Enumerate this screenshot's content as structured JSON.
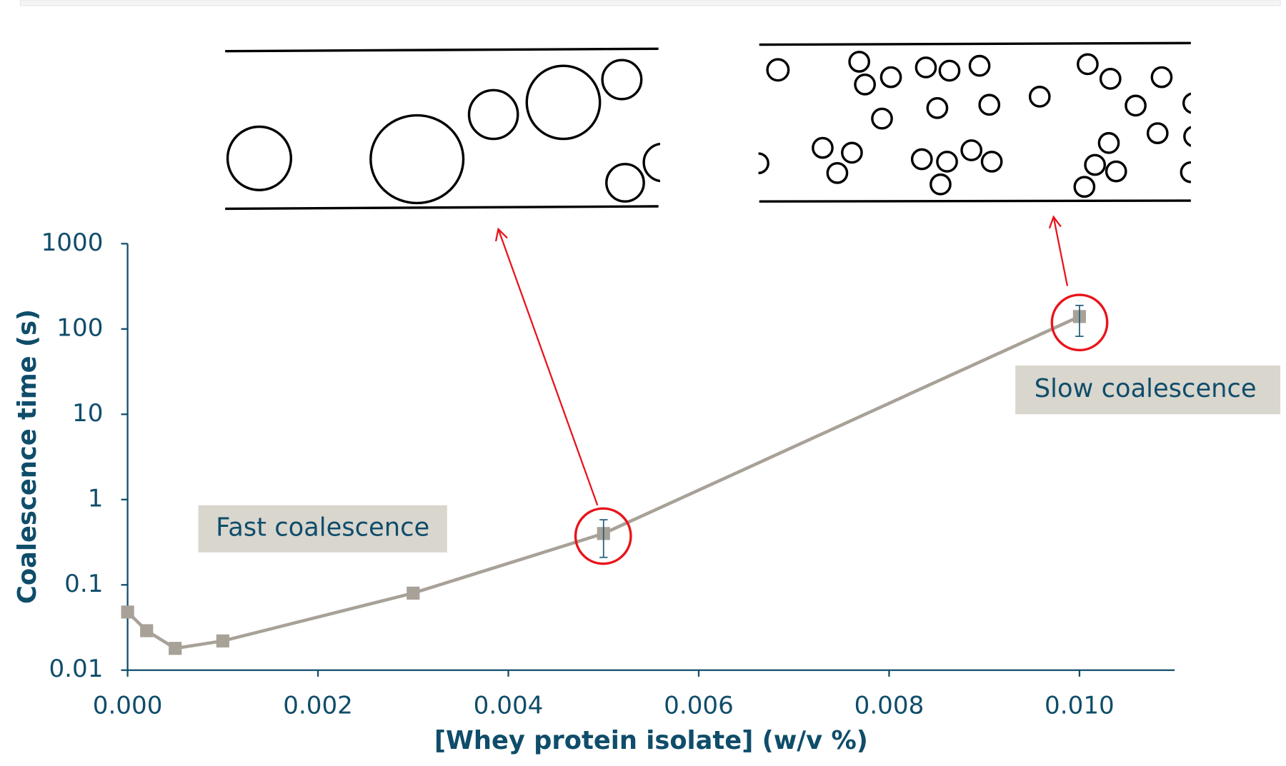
{
  "chart_data": {
    "type": "line",
    "x_label": "[Whey protein isolate] (w/v %)",
    "y_label": "Coalescence time (s)",
    "x": [
      0,
      0.0002,
      0.0005,
      0.001,
      0.003,
      0.005,
      0.01
    ],
    "values": [
      0.048,
      0.029,
      0.018,
      0.022,
      0.08,
      0.4,
      140
    ],
    "error_upper": [
      null,
      null,
      null,
      null,
      null,
      0.58,
      189
    ],
    "error_lower": [
      null,
      null,
      null,
      null,
      null,
      0.21,
      82
    ],
    "color": "#a8a198",
    "error_color": "#1f5c78",
    "log_y": true,
    "xlim": [
      0,
      0.011
    ],
    "ylim": [
      0.01,
      1000
    ],
    "xticks": [
      {
        "value": 0,
        "label": "0.000"
      },
      0.002,
      0.004,
      0.006,
      0.008,
      {
        "value": 0.01,
        "label": "0.010"
      }
    ],
    "yticks": [
      0.01,
      0.1,
      1,
      10,
      100,
      1000
    ],
    "annotations": [
      "Fast coalescence",
      "Slow coalescence"
    ]
  }
}
